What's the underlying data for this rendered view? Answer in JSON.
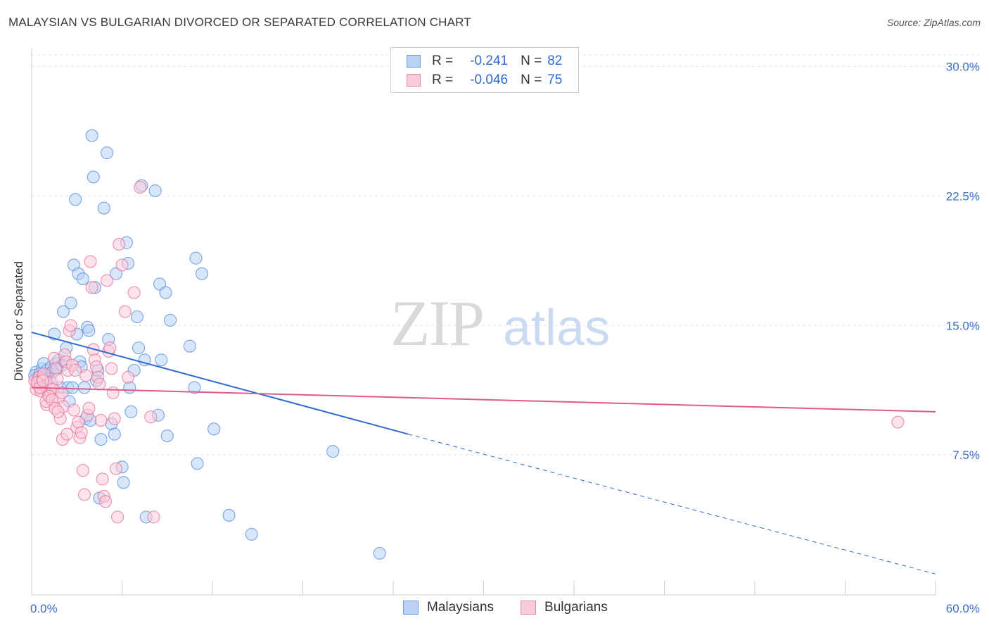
{
  "title": "MALAYSIAN VS BULGARIAN DIVORCED OR SEPARATED CORRELATION CHART",
  "source": "Source: ZipAtlas.com",
  "watermark": {
    "zip": "ZIP",
    "atlas": "atlas"
  },
  "legend_top": {
    "rows": [
      {
        "r_label": "R =",
        "r_value": "-0.241",
        "n_label": "N =",
        "n_value": "82",
        "color": "#6f9ee6",
        "fill": "#b8d1f5"
      },
      {
        "r_label": "R =",
        "r_value": "-0.046",
        "n_label": "N =",
        "n_value": "75",
        "color": "#ee8aa8",
        "fill": "#f9cbd9"
      }
    ]
  },
  "legend_bottom": [
    {
      "label": "Malaysians",
      "color": "#6f9ee6",
      "fill": "#b8d1f5"
    },
    {
      "label": "Bulgarians",
      "color": "#ee8aa8",
      "fill": "#f9cbd9"
    }
  ],
  "chart_data": {
    "type": "scatter",
    "title": "MALAYSIAN VS BULGARIAN DIVORCED OR SEPARATED CORRELATION CHART",
    "xlabel": "",
    "ylabel": "Divorced or Separated",
    "xlim": [
      0,
      60
    ],
    "ylim": [
      0,
      31
    ],
    "x_tick_labels": [
      "0.0%",
      "60.0%"
    ],
    "y_ticks": [
      7.5,
      15,
      22.5,
      30
    ],
    "y_tick_labels": [
      "7.5%",
      "15.0%",
      "22.5%",
      "30.0%"
    ],
    "grid": true,
    "legend_position": "top-center",
    "series": [
      {
        "name": "Malaysians",
        "color": "#5b8fdf",
        "fill": "#b8d1f5",
        "trend": {
          "x0": 0,
          "y0": 14.6,
          "x1": 25,
          "y1": 8.7,
          "dashed_to_x": 60,
          "dashed_to_y": 0.6,
          "line_color": "#2f6bd0"
        },
        "points": [
          [
            0.3,
            12.3
          ],
          [
            0.4,
            12.0
          ],
          [
            0.5,
            11.8
          ],
          [
            0.6,
            12.1
          ],
          [
            0.7,
            12.5
          ],
          [
            0.8,
            12.8
          ],
          [
            0.9,
            12.0
          ],
          [
            1.0,
            12.4
          ],
          [
            1.1,
            12.2
          ],
          [
            1.2,
            11.9
          ],
          [
            1.3,
            12.6
          ],
          [
            1.4,
            12.3
          ],
          [
            1.5,
            14.5
          ],
          [
            1.6,
            12.8
          ],
          [
            1.7,
            12.5
          ],
          [
            1.8,
            13.0
          ],
          [
            1.9,
            11.4
          ],
          [
            2.0,
            12.7
          ],
          [
            2.1,
            15.8
          ],
          [
            2.2,
            12.9
          ],
          [
            2.3,
            13.7
          ],
          [
            2.4,
            11.4
          ],
          [
            2.5,
            10.6
          ],
          [
            2.6,
            16.3
          ],
          [
            2.7,
            11.4
          ],
          [
            2.8,
            18.5
          ],
          [
            2.9,
            22.3
          ],
          [
            3.0,
            14.5
          ],
          [
            3.1,
            18.0
          ],
          [
            3.2,
            12.9
          ],
          [
            3.3,
            12.6
          ],
          [
            3.4,
            17.7
          ],
          [
            3.5,
            11.4
          ],
          [
            3.6,
            9.6
          ],
          [
            3.7,
            14.9
          ],
          [
            3.8,
            14.7
          ],
          [
            3.9,
            9.5
          ],
          [
            4.0,
            26.0
          ],
          [
            4.1,
            23.6
          ],
          [
            4.2,
            17.2
          ],
          [
            4.3,
            11.8
          ],
          [
            4.4,
            12.4
          ],
          [
            4.5,
            5.0
          ],
          [
            4.6,
            8.4
          ],
          [
            4.8,
            21.8
          ],
          [
            5.0,
            25.0
          ],
          [
            5.1,
            14.2
          ],
          [
            5.3,
            9.3
          ],
          [
            5.5,
            8.7
          ],
          [
            5.6,
            18.0
          ],
          [
            6.0,
            6.8
          ],
          [
            6.1,
            5.9
          ],
          [
            6.3,
            19.8
          ],
          [
            6.4,
            18.6
          ],
          [
            6.5,
            11.4
          ],
          [
            6.6,
            10.0
          ],
          [
            6.8,
            12.4
          ],
          [
            7.0,
            15.5
          ],
          [
            7.1,
            13.7
          ],
          [
            7.3,
            23.1
          ],
          [
            7.5,
            13.0
          ],
          [
            7.6,
            3.9
          ],
          [
            8.2,
            22.8
          ],
          [
            8.4,
            9.8
          ],
          [
            8.5,
            17.4
          ],
          [
            8.6,
            13.0
          ],
          [
            8.9,
            16.9
          ],
          [
            9.0,
            8.6
          ],
          [
            9.2,
            15.3
          ],
          [
            10.5,
            13.8
          ],
          [
            10.8,
            11.4
          ],
          [
            10.9,
            18.9
          ],
          [
            11.0,
            7.0
          ],
          [
            11.3,
            18.0
          ],
          [
            12.1,
            9.0
          ],
          [
            13.1,
            4.0
          ],
          [
            14.6,
            2.9
          ],
          [
            20.0,
            7.7
          ],
          [
            23.1,
            1.8
          ],
          [
            0.2,
            12.1
          ],
          [
            0.45,
            11.9
          ],
          [
            0.55,
            12.2
          ]
        ]
      },
      {
        "name": "Bulgarians",
        "color": "#e7749a",
        "fill": "#f9cbd9",
        "trend": {
          "x0": 0,
          "y0": 11.4,
          "x1": 60,
          "y1": 10.0,
          "line_color": "#e05a8a"
        },
        "points": [
          [
            0.2,
            11.8
          ],
          [
            0.3,
            11.3
          ],
          [
            0.4,
            11.6
          ],
          [
            0.5,
            12.0
          ],
          [
            0.6,
            11.2
          ],
          [
            0.7,
            11.9
          ],
          [
            0.8,
            12.2
          ],
          [
            0.9,
            11.5
          ],
          [
            1.0,
            10.4
          ],
          [
            1.1,
            11.0
          ],
          [
            1.2,
            10.9
          ],
          [
            1.3,
            11.7
          ],
          [
            1.4,
            11.3
          ],
          [
            1.5,
            13.1
          ],
          [
            1.6,
            12.5
          ],
          [
            1.7,
            11.9
          ],
          [
            1.8,
            10.8
          ],
          [
            1.9,
            9.6
          ],
          [
            2.0,
            11.1
          ],
          [
            2.1,
            10.3
          ],
          [
            2.2,
            13.3
          ],
          [
            2.3,
            12.9
          ],
          [
            2.4,
            12.4
          ],
          [
            2.5,
            14.7
          ],
          [
            2.6,
            15.0
          ],
          [
            2.7,
            12.7
          ],
          [
            2.8,
            10.1
          ],
          [
            2.9,
            12.4
          ],
          [
            3.0,
            9.1
          ],
          [
            3.1,
            9.4
          ],
          [
            3.2,
            8.5
          ],
          [
            3.3,
            8.8
          ],
          [
            3.4,
            6.6
          ],
          [
            3.5,
            5.2
          ],
          [
            3.6,
            12.1
          ],
          [
            3.7,
            9.8
          ],
          [
            3.8,
            10.2
          ],
          [
            3.9,
            18.7
          ],
          [
            4.0,
            17.2
          ],
          [
            4.1,
            13.6
          ],
          [
            4.2,
            13.0
          ],
          [
            4.3,
            12.6
          ],
          [
            4.4,
            12.0
          ],
          [
            4.5,
            11.6
          ],
          [
            4.6,
            9.5
          ],
          [
            4.7,
            6.1
          ],
          [
            4.8,
            5.1
          ],
          [
            4.9,
            4.8
          ],
          [
            5.0,
            17.6
          ],
          [
            5.1,
            13.5
          ],
          [
            5.2,
            13.7
          ],
          [
            5.3,
            12.5
          ],
          [
            5.4,
            11.1
          ],
          [
            5.5,
            9.6
          ],
          [
            5.6,
            6.7
          ],
          [
            5.7,
            3.9
          ],
          [
            5.8,
            19.7
          ],
          [
            6.0,
            18.5
          ],
          [
            6.2,
            15.8
          ],
          [
            6.4,
            12.0
          ],
          [
            6.8,
            16.9
          ],
          [
            7.2,
            23.0
          ],
          [
            7.9,
            9.7
          ],
          [
            8.1,
            3.9
          ],
          [
            0.35,
            11.7
          ],
          [
            0.55,
            11.4
          ],
          [
            0.75,
            11.8
          ],
          [
            0.95,
            10.6
          ],
          [
            1.15,
            10.9
          ],
          [
            1.35,
            10.7
          ],
          [
            1.55,
            10.2
          ],
          [
            1.75,
            10.0
          ],
          [
            57.5,
            9.4
          ],
          [
            2.05,
            8.4
          ],
          [
            2.35,
            8.7
          ]
        ]
      }
    ]
  }
}
